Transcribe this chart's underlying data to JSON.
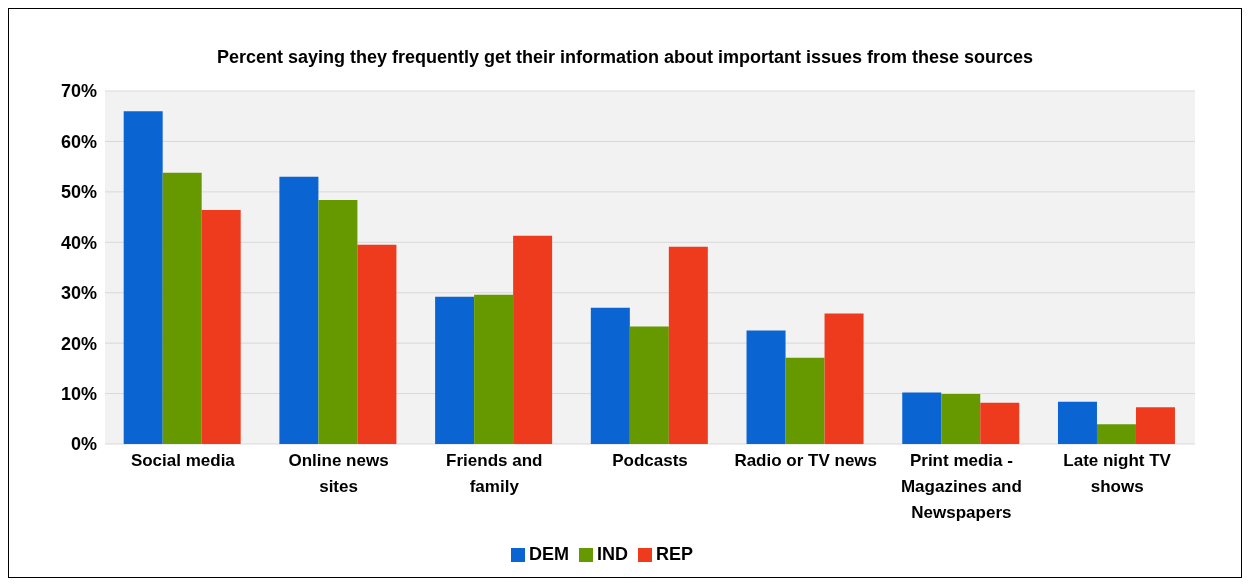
{
  "chart_data": {
    "type": "bar",
    "title": "Percent saying they frequently get their information about important issues from these sources",
    "categories": [
      "Social media",
      "Online news sites",
      "Friends and family",
      "Podcasts",
      "Radio or TV news",
      "Print media - Magazines and Newspapers",
      "Late night TV shows"
    ],
    "series": [
      {
        "name": "DEM",
        "color": "#0a64d2",
        "values": [
          66,
          53,
          29.2,
          27,
          22.5,
          10.2,
          8.4
        ]
      },
      {
        "name": "IND",
        "color": "#669900",
        "values": [
          53.8,
          48.4,
          29.6,
          23.3,
          17.1,
          9.9,
          3.9
        ]
      },
      {
        "name": "REP",
        "color": "#ee3b1e",
        "values": [
          46.4,
          39.5,
          41.3,
          39.1,
          25.9,
          8.2,
          7.3
        ]
      }
    ],
    "ylim": [
      0,
      70
    ],
    "yticks": [
      {
        "value": 0,
        "label": "0%"
      },
      {
        "value": 10,
        "label": "10%"
      },
      {
        "value": 20,
        "label": "20%"
      },
      {
        "value": 30,
        "label": "30%"
      },
      {
        "value": 40,
        "label": "40%"
      },
      {
        "value": 50,
        "label": "50%"
      },
      {
        "value": 60,
        "label": "60%"
      },
      {
        "value": 70,
        "label": "70%"
      }
    ],
    "grid": "y",
    "legend": "bottom"
  }
}
